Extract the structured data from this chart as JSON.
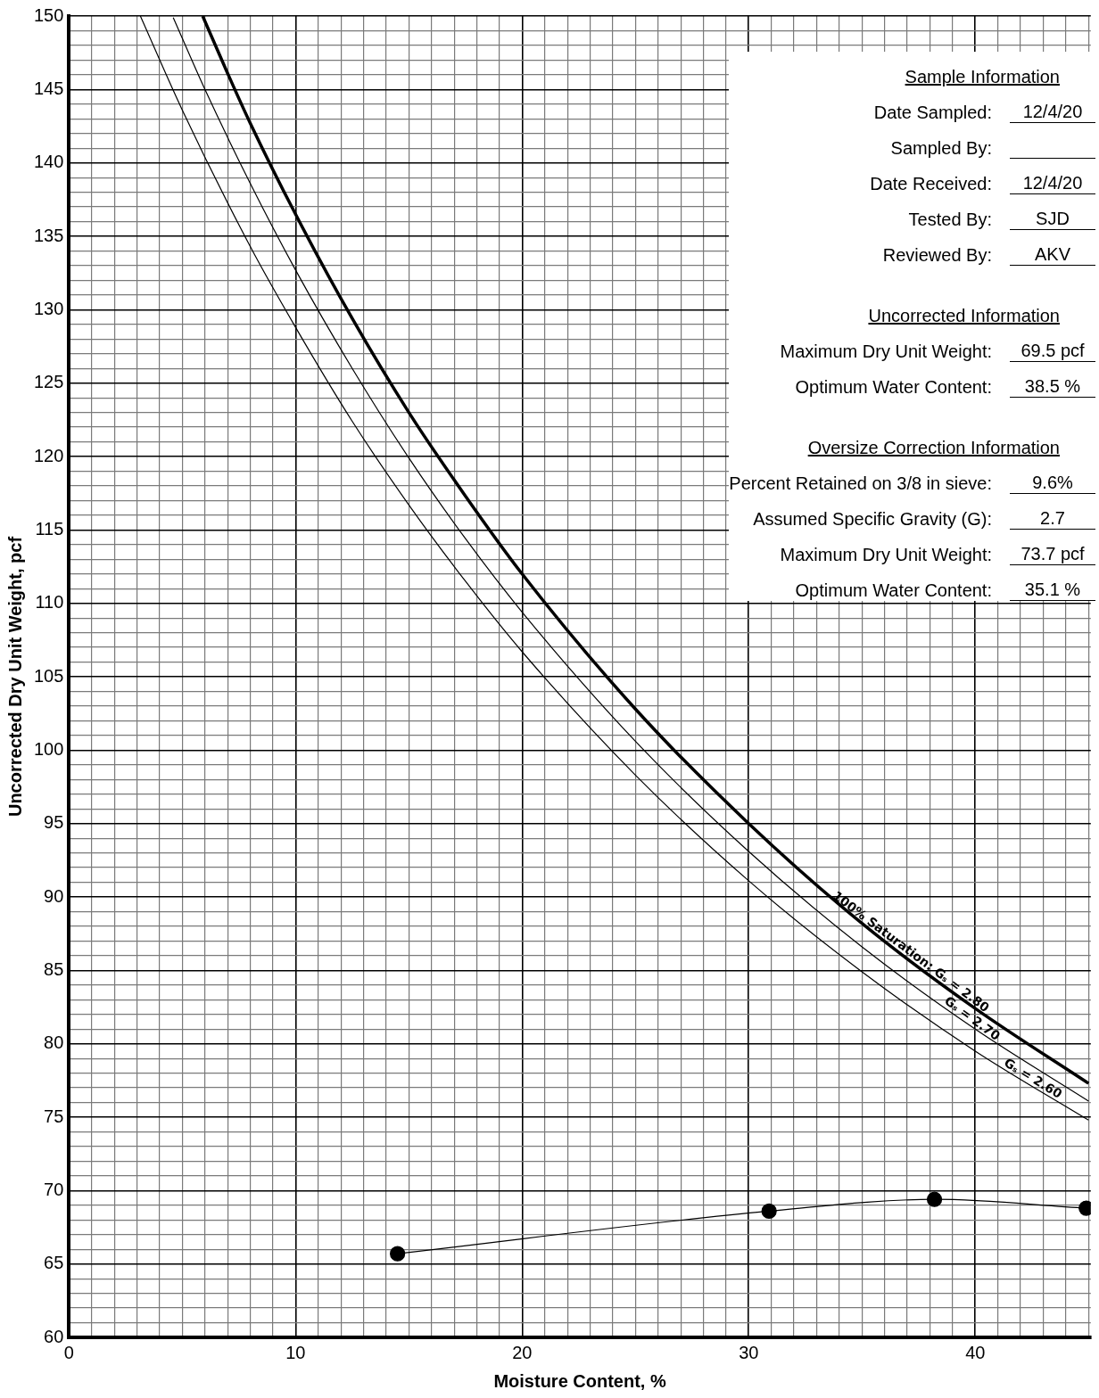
{
  "chart_data": {
    "type": "line",
    "xlabel": "Moisture Content, %",
    "ylabel": "Uncorrected Dry Unit Weight, pcf",
    "series": [
      {
        "name": "100% Saturation: Gₛ = 2.80",
        "color": "#000000",
        "marker": "none",
        "x": [
          5.9,
          7,
          8,
          10,
          12.5,
          15,
          17.5,
          20,
          25,
          30,
          35,
          40,
          45
        ],
        "values": [
          150.0,
          146.1,
          142.7,
          136.5,
          129.4,
          123.0,
          117.3,
          112.0,
          102.8,
          95.0,
          88.2,
          82.4,
          77.3
        ]
      },
      {
        "name": "Gₛ = 2.70",
        "color": "#000000",
        "marker": "none",
        "x": [
          4.6,
          6,
          8,
          10,
          12.5,
          15,
          17.5,
          20,
          25,
          30,
          35,
          40,
          45
        ],
        "values": [
          149.9,
          145.0,
          138.6,
          132.7,
          126.0,
          119.9,
          114.4,
          109.4,
          100.6,
          93.1,
          86.6,
          81.0,
          76.1
        ]
      },
      {
        "name": "Gₛ = 2.60",
        "color": "#000000",
        "marker": "none",
        "x": [
          3.15,
          5,
          8,
          10,
          12.5,
          15,
          17.5,
          20,
          25,
          30,
          35,
          40,
          45
        ],
        "values": [
          150.0,
          143.6,
          134.3,
          128.8,
          122.4,
          116.7,
          111.5,
          106.7,
          98.3,
          91.1,
          84.9,
          79.5,
          74.8
        ]
      },
      {
        "color": "#000000",
        "marker": "circle",
        "x": [
          14.5,
          30.9,
          38.2,
          44.9
        ],
        "values": [
          65.7,
          68.6,
          69.4,
          68.8
        ]
      }
    ],
    "xlim": [
      0,
      45.1
    ],
    "xticks": [
      0,
      {
        "value": 1,
        "label": null
      },
      {
        "value": 2,
        "label": null
      },
      {
        "value": 3,
        "label": null
      },
      {
        "value": 4,
        "label": null
      },
      {
        "value": 5,
        "label": null
      },
      {
        "value": 6,
        "label": null
      },
      {
        "value": 7,
        "label": null
      },
      {
        "value": 8,
        "label": null
      },
      {
        "value": 9,
        "label": null
      },
      10,
      {
        "value": 11,
        "label": null
      },
      {
        "value": 12,
        "label": null
      },
      {
        "value": 13,
        "label": null
      },
      {
        "value": 14,
        "label": null
      },
      {
        "value": 15,
        "label": null
      },
      {
        "value": 16,
        "label": null
      },
      {
        "value": 17,
        "label": null
      },
      {
        "value": 18,
        "label": null
      },
      {
        "value": 19,
        "label": null
      },
      20,
      {
        "value": 21,
        "label": null
      },
      {
        "value": 22,
        "label": null
      },
      {
        "value": 23,
        "label": null
      },
      {
        "value": 24,
        "label": null
      },
      {
        "value": 25,
        "label": null
      },
      {
        "value": 26,
        "label": null
      },
      {
        "value": 27,
        "label": null
      },
      {
        "value": 28,
        "label": null
      },
      {
        "value": 29,
        "label": null
      },
      30,
      {
        "value": 31,
        "label": null
      },
      {
        "value": 32,
        "label": null
      },
      {
        "value": 33,
        "label": null
      },
      {
        "value": 34,
        "label": null
      },
      {
        "value": 35,
        "label": null
      },
      {
        "value": 36,
        "label": null
      },
      {
        "value": 37,
        "label": null
      },
      {
        "value": 38,
        "label": null
      },
      {
        "value": 39,
        "label": null
      },
      40,
      {
        "value": 41,
        "label": null
      },
      {
        "value": 42,
        "label": null
      },
      {
        "value": 43,
        "label": null
      },
      {
        "value": 44,
        "label": null
      },
      {
        "value": 45,
        "label": null
      }
    ],
    "ylim": [
      60,
      150
    ],
    "yticks": [
      60,
      {
        "value": 61,
        "label": null
      },
      {
        "value": 62,
        "label": null
      },
      {
        "value": 63,
        "label": null
      },
      {
        "value": 64,
        "label": null
      },
      65,
      {
        "value": 66,
        "label": null
      },
      {
        "value": 67,
        "label": null
      },
      {
        "value": 68,
        "label": null
      },
      {
        "value": 69,
        "label": null
      },
      70,
      {
        "value": 71,
        "label": null
      },
      {
        "value": 72,
        "label": null
      },
      {
        "value": 73,
        "label": null
      },
      {
        "value": 74,
        "label": null
      },
      75,
      {
        "value": 76,
        "label": null
      },
      {
        "value": 77,
        "label": null
      },
      {
        "value": 78,
        "label": null
      },
      {
        "value": 79,
        "label": null
      },
      80,
      {
        "value": 81,
        "label": null
      },
      {
        "value": 82,
        "label": null
      },
      {
        "value": 83,
        "label": null
      },
      {
        "value": 84,
        "label": null
      },
      85,
      {
        "value": 86,
        "label": null
      },
      {
        "value": 87,
        "label": null
      },
      {
        "value": 88,
        "label": null
      },
      {
        "value": 89,
        "label": null
      },
      90,
      {
        "value": 91,
        "label": null
      },
      {
        "value": 92,
        "label": null
      },
      {
        "value": 93,
        "label": null
      },
      {
        "value": 94,
        "label": null
      },
      95,
      {
        "value": 96,
        "label": null
      },
      {
        "value": 97,
        "label": null
      },
      {
        "value": 98,
        "label": null
      },
      {
        "value": 99,
        "label": null
      },
      100,
      {
        "value": 101,
        "label": null
      },
      {
        "value": 102,
        "label": null
      },
      {
        "value": 103,
        "label": null
      },
      {
        "value": 104,
        "label": null
      },
      105,
      {
        "value": 106,
        "label": null
      },
      {
        "value": 107,
        "label": null
      },
      {
        "value": 108,
        "label": null
      },
      {
        "value": 109,
        "label": null
      },
      110,
      {
        "value": 111,
        "label": null
      },
      {
        "value": 112,
        "label": null
      },
      {
        "value": 113,
        "label": null
      },
      {
        "value": 114,
        "label": null
      },
      115,
      {
        "value": 116,
        "label": null
      },
      {
        "value": 117,
        "label": null
      },
      {
        "value": 118,
        "label": null
      },
      {
        "value": 119,
        "label": null
      },
      120,
      {
        "value": 121,
        "label": null
      },
      {
        "value": 122,
        "label": null
      },
      {
        "value": 123,
        "label": null
      },
      {
        "value": 124,
        "label": null
      },
      125,
      {
        "value": 126,
        "label": null
      },
      {
        "value": 127,
        "label": null
      },
      {
        "value": 128,
        "label": null
      },
      {
        "value": 129,
        "label": null
      },
      130,
      {
        "value": 131,
        "label": null
      },
      {
        "value": 132,
        "label": null
      },
      {
        "value": 133,
        "label": null
      },
      {
        "value": 134,
        "label": null
      },
      135,
      {
        "value": 136,
        "label": null
      },
      {
        "value": 137,
        "label": null
      },
      {
        "value": 138,
        "label": null
      },
      {
        "value": 139,
        "label": null
      },
      140,
      {
        "value": 141,
        "label": null
      },
      {
        "value": 142,
        "label": null
      },
      {
        "value": 143,
        "label": null
      },
      {
        "value": 144,
        "label": null
      },
      145,
      {
        "value": 146,
        "label": null
      },
      {
        "value": 147,
        "label": null
      },
      {
        "value": 148,
        "label": null
      },
      {
        "value": 149,
        "label": null
      },
      150
    ],
    "grid": true,
    "legend": false,
    "line_style": "solid",
    "annotations": [
      "Sample Information",
      "Date Sampled:",
      "12/4/20",
      "Sampled By:",
      "Date Received:",
      "12/4/20",
      "Tested By:",
      "SJD",
      "Reviewed By:",
      "AKV",
      "Uncorrected Information",
      "Maximum Dry Unit Weight:",
      "69.5 pcf",
      "Optimum Water Content:",
      "38.5 %",
      "Oversize Correction Information",
      "Percent Retained on 3/8 in sieve:",
      "9.6%",
      "Assumed Specific Gravity (G):",
      "2.7",
      "Maximum Dry Unit Weight:",
      "73.7 pcf",
      "Optimum Water Content:",
      "35.1 %"
    ]
  }
}
